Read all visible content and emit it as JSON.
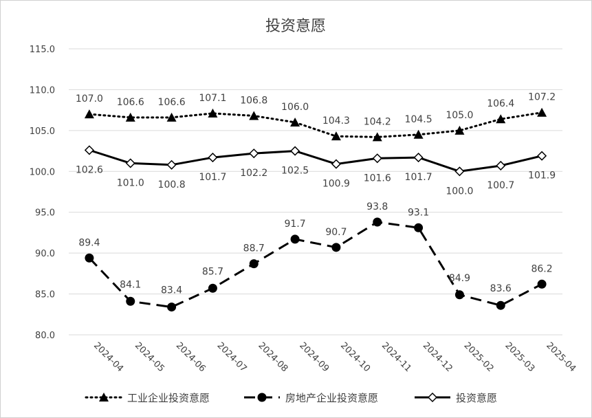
{
  "chart_data": {
    "type": "line",
    "title": "投资意愿",
    "xlabel": "",
    "ylabel": "",
    "categories": [
      "2024-04",
      "2024-05",
      "2024-06",
      "2024-07",
      "2024-08",
      "2024-09",
      "2024-10",
      "2024-11",
      "2024-12",
      "2025-02",
      "2025-03",
      "2025-04"
    ],
    "ylim": [
      80,
      115
    ],
    "yticks": [
      "115.0",
      "110.0",
      "105.0",
      "100.0",
      "95.0",
      "90.0",
      "85.0",
      "80.0"
    ],
    "grid": true,
    "legend_position": "bottom",
    "series": [
      {
        "name": "工业企业投资意愿",
        "style": "dotted",
        "marker": "triangle",
        "color": "#000000",
        "values": [
          107.0,
          106.6,
          106.6,
          107.1,
          106.8,
          106.0,
          104.3,
          104.2,
          104.5,
          105.0,
          106.4,
          107.2
        ],
        "labels": [
          "107.0",
          "106.6",
          "106.6",
          "107.1",
          "106.8",
          "106.0",
          "104.3",
          "104.2",
          "104.5",
          "105.0",
          "106.4",
          "107.2"
        ]
      },
      {
        "name": "房地产企业投资意愿",
        "style": "dashed",
        "marker": "circle",
        "color": "#000000",
        "values": [
          89.4,
          84.1,
          83.4,
          85.7,
          88.7,
          91.7,
          90.7,
          93.8,
          93.1,
          84.9,
          83.6,
          86.2
        ],
        "labels": [
          "89.4",
          "84.1",
          "83.4",
          "85.7",
          "88.7",
          "91.7",
          "90.7",
          "93.8",
          "93.1",
          "84.9",
          "83.6",
          "86.2"
        ]
      },
      {
        "name": "投资意愿",
        "style": "solid",
        "marker": "diamond",
        "color": "#000000",
        "values": [
          102.6,
          101.0,
          100.8,
          101.7,
          102.2,
          102.5,
          100.9,
          101.6,
          101.7,
          100.0,
          100.7,
          101.9
        ],
        "labels": [
          "102.6",
          "101.0",
          "100.8",
          "101.7",
          "102.2",
          "102.5",
          "100.9",
          "101.6",
          "101.7",
          "100.0",
          "100.7",
          "101.9"
        ]
      }
    ]
  }
}
